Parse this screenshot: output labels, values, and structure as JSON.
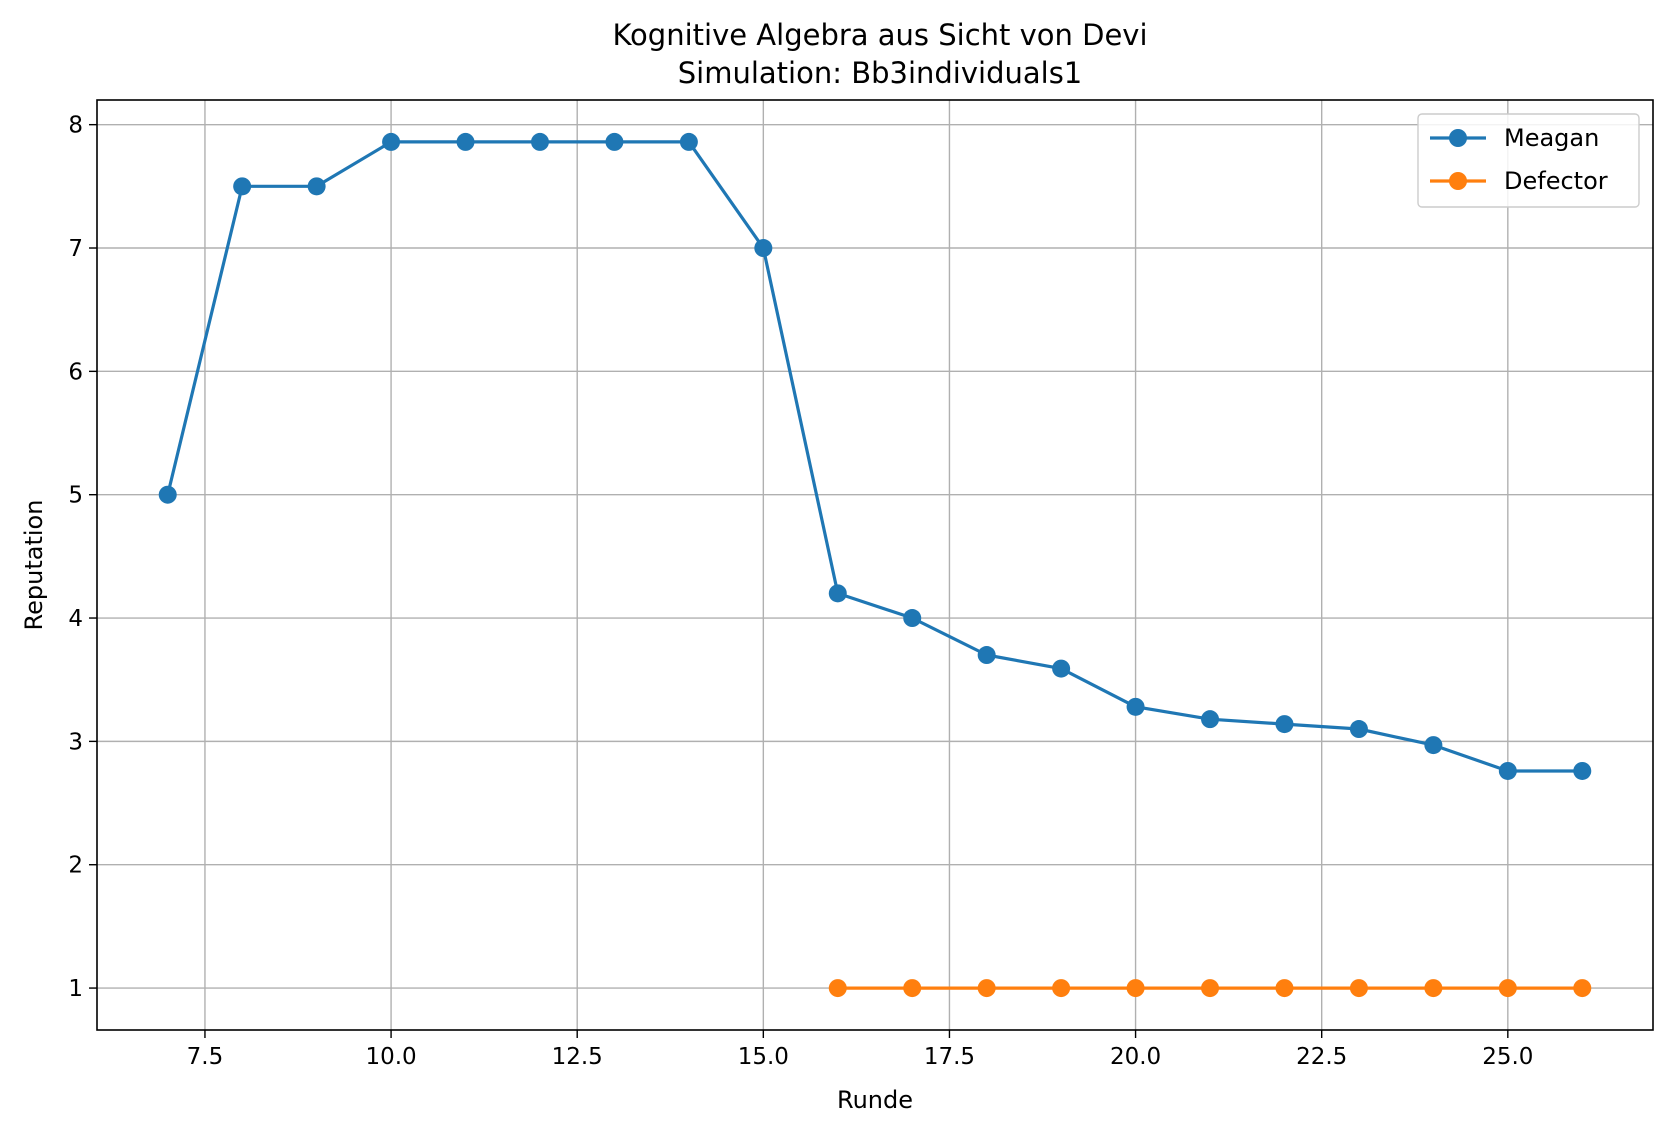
{
  "chart_data": {
    "type": "line",
    "title": "Kognitive Algebra aus Sicht von Devi",
    "subtitle": "Simulation: Bb3individuals1",
    "xlabel": "Runde",
    "ylabel": "Reputation",
    "xlim": [
      6.05,
      26.95
    ],
    "ylim": [
      0.66,
      8.2
    ],
    "xticks": [
      7.5,
      10.0,
      12.5,
      15.0,
      17.5,
      20.0,
      22.5,
      25.0
    ],
    "xtick_labels": [
      "7.5",
      "10.0",
      "12.5",
      "15.0",
      "17.5",
      "20.0",
      "22.5",
      "25.0"
    ],
    "yticks": [
      1,
      2,
      3,
      4,
      5,
      6,
      7,
      8
    ],
    "ytick_labels": [
      "1",
      "2",
      "3",
      "4",
      "5",
      "6",
      "7",
      "8"
    ],
    "grid": true,
    "legend_position": "top-right",
    "series": [
      {
        "name": "Meagan",
        "color": "#1f77b4",
        "x": [
          7,
          8,
          9,
          10,
          11,
          12,
          13,
          14,
          15,
          16,
          17,
          18,
          19,
          20,
          21,
          22,
          23,
          24,
          25,
          26
        ],
        "y": [
          5.0,
          7.5,
          7.5,
          7.86,
          7.86,
          7.86,
          7.86,
          7.86,
          7.0,
          4.2,
          4.0,
          3.7,
          3.59,
          3.28,
          3.18,
          3.14,
          3.1,
          2.97,
          2.76,
          2.76
        ]
      },
      {
        "name": "Defector",
        "color": "#ff7f0e",
        "x": [
          16,
          17,
          18,
          19,
          20,
          21,
          22,
          23,
          24,
          25,
          26
        ],
        "y": [
          1,
          1,
          1,
          1,
          1,
          1,
          1,
          1,
          1,
          1,
          1
        ]
      }
    ]
  }
}
